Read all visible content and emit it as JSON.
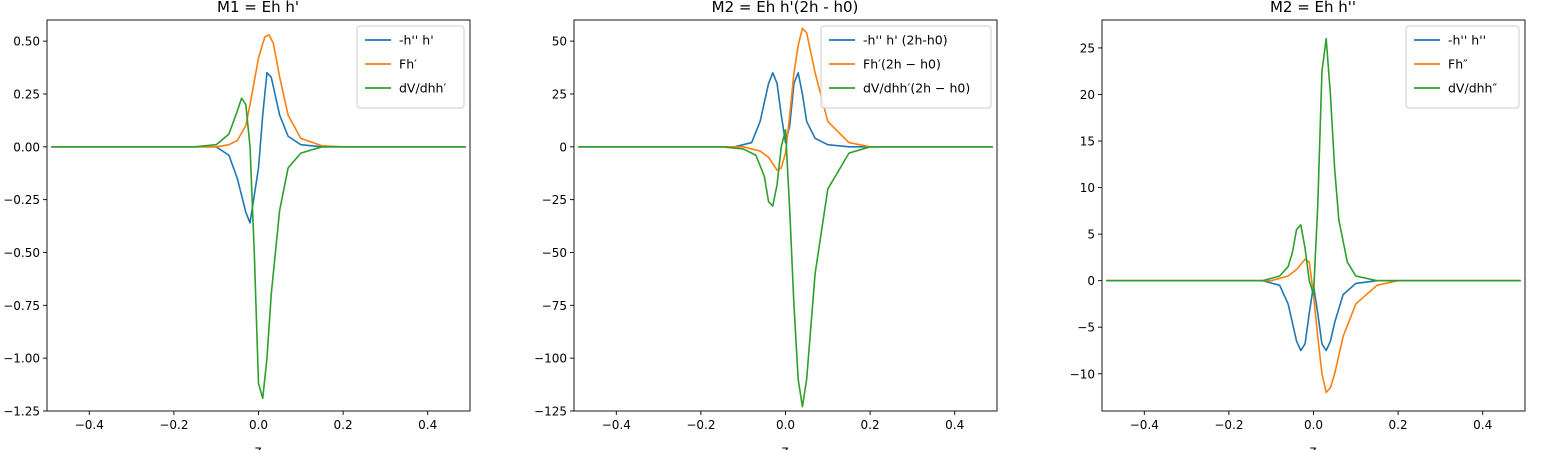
{
  "figure": {
    "background": "#ffffff"
  },
  "chart_data": [
    {
      "type": "line",
      "title": "M1 = Eh h'",
      "xlabel": "z",
      "ylabel": "",
      "xlim": [
        -0.5,
        0.5
      ],
      "ylim": [
        -1.25,
        0.6
      ],
      "xticks": [
        -0.4,
        -0.2,
        0.0,
        0.2,
        0.4
      ],
      "xtick_labels": [
        "−0.4",
        "−0.2",
        "0.0",
        "0.2",
        "0.4"
      ],
      "yticks": [
        0.5,
        0.25,
        0,
        -0.25,
        -0.5,
        -0.75,
        -1.0,
        -1.25
      ],
      "ytick_labels": [
        "0.50",
        "0.25",
        "0.00",
        "−0.25",
        "−0.50",
        "−0.75",
        "−1.00",
        "−1.25"
      ],
      "grid": false,
      "legend_position": "top-right",
      "series": [
        {
          "name": "-h'' h'",
          "color": "#1f77b4",
          "x": [
            -0.49,
            -0.1,
            -0.07,
            -0.05,
            -0.03,
            -0.02,
            0.0,
            0.01,
            0.02,
            0.03,
            0.05,
            0.07,
            0.1,
            0.15,
            0.49
          ],
          "y": [
            0,
            0,
            -0.04,
            -0.15,
            -0.31,
            -0.36,
            -0.1,
            0.15,
            0.35,
            0.33,
            0.15,
            0.05,
            0.01,
            0,
            0
          ]
        },
        {
          "name": "Fh′",
          "color": "#ff7f0e",
          "x": [
            -0.49,
            -0.1,
            -0.07,
            -0.05,
            -0.03,
            -0.02,
            0.0,
            0.015,
            0.025,
            0.035,
            0.05,
            0.07,
            0.1,
            0.15,
            0.2,
            0.49
          ],
          "y": [
            0,
            0,
            0.01,
            0.03,
            0.1,
            0.2,
            0.42,
            0.52,
            0.53,
            0.49,
            0.33,
            0.15,
            0.04,
            0.005,
            0,
            0
          ]
        },
        {
          "name": "dV/dhh′",
          "color": "#2ca02c",
          "x": [
            -0.49,
            -0.15,
            -0.1,
            -0.07,
            -0.05,
            -0.04,
            -0.03,
            -0.02,
            -0.01,
            0.0,
            0.01,
            0.02,
            0.03,
            0.05,
            0.07,
            0.1,
            0.15,
            0.2,
            0.49
          ],
          "y": [
            0,
            0,
            0.01,
            0.06,
            0.17,
            0.23,
            0.2,
            0.0,
            -0.5,
            -1.12,
            -1.19,
            -1.0,
            -0.7,
            -0.3,
            -0.1,
            -0.03,
            0,
            0,
            0
          ]
        }
      ]
    },
    {
      "type": "line",
      "title": "M2 = Eh h'(2h - h0)",
      "xlabel": "z",
      "ylabel": "",
      "xlim": [
        -0.5,
        0.5
      ],
      "ylim": [
        -125,
        60
      ],
      "xticks": [
        -0.4,
        -0.2,
        0.0,
        0.2,
        0.4
      ],
      "xtick_labels": [
        "−0.4",
        "−0.2",
        "0.0",
        "0.2",
        "0.4"
      ],
      "yticks": [
        50,
        25,
        0,
        -25,
        -50,
        -75,
        -100,
        -125
      ],
      "ytick_labels": [
        "50",
        "25",
        "0",
        "−25",
        "−50",
        "−75",
        "−100",
        "−125"
      ],
      "grid": false,
      "legend_position": "top-right",
      "series": [
        {
          "name": "-h'' h' (2h-h0)",
          "color": "#1f77b4",
          "x": [
            -0.49,
            -0.12,
            -0.08,
            -0.06,
            -0.04,
            -0.03,
            -0.02,
            -0.01,
            0.0,
            0.01,
            0.02,
            0.03,
            0.04,
            0.05,
            0.07,
            0.1,
            0.15,
            0.49
          ],
          "y": [
            0,
            0,
            2,
            12,
            30,
            35,
            30,
            15,
            2,
            10,
            30,
            35,
            25,
            12,
            4,
            1,
            0,
            0
          ]
        },
        {
          "name": "Fh′(2h − h0)",
          "color": "#ff7f0e",
          "x": [
            -0.49,
            -0.1,
            -0.06,
            -0.04,
            -0.02,
            -0.01,
            0.0,
            0.01,
            0.02,
            0.03,
            0.04,
            0.05,
            0.07,
            0.1,
            0.15,
            0.2,
            0.49
          ],
          "y": [
            0,
            0,
            -2,
            -5,
            -11,
            -10,
            -3,
            15,
            35,
            48,
            56,
            54,
            35,
            12,
            2,
            0,
            0
          ]
        },
        {
          "name": "dV/dhh′(2h − h0)",
          "color": "#2ca02c",
          "x": [
            -0.49,
            -0.15,
            -0.1,
            -0.07,
            -0.05,
            -0.04,
            -0.03,
            -0.02,
            -0.01,
            0.0,
            0.01,
            0.02,
            0.03,
            0.04,
            0.05,
            0.07,
            0.1,
            0.15,
            0.2,
            0.49
          ],
          "y": [
            0,
            0,
            -1,
            -4,
            -14,
            -26,
            -28,
            -18,
            0,
            8,
            -30,
            -75,
            -110,
            -123,
            -110,
            -60,
            -20,
            -3,
            0,
            0
          ]
        }
      ]
    },
    {
      "type": "line",
      "title": "M2 = Eh h''",
      "xlabel": "z",
      "ylabel": "",
      "xlim": [
        -0.5,
        0.5
      ],
      "ylim": [
        -14,
        28
      ],
      "xticks": [
        -0.4,
        -0.2,
        0.0,
        0.2,
        0.4
      ],
      "xtick_labels": [
        "−0.4",
        "−0.2",
        "0.0",
        "0.2",
        "0.4"
      ],
      "yticks": [
        25,
        20,
        15,
        10,
        5,
        0,
        -5,
        -10
      ],
      "ytick_labels": [
        "25",
        "20",
        "15",
        "10",
        "5",
        "0",
        "−5",
        "−10"
      ],
      "grid": false,
      "legend_position": "top-right",
      "series": [
        {
          "name": "-h'' h''",
          "color": "#1f77b4",
          "x": [
            -0.49,
            -0.12,
            -0.08,
            -0.06,
            -0.04,
            -0.03,
            -0.02,
            -0.01,
            0.0,
            0.01,
            0.02,
            0.03,
            0.04,
            0.05,
            0.07,
            0.1,
            0.15,
            0.49
          ],
          "y": [
            0,
            0,
            -0.5,
            -2.5,
            -6.5,
            -7.5,
            -6.8,
            -3.5,
            -0.5,
            -3.5,
            -6.8,
            -7.5,
            -6.5,
            -4.5,
            -1.5,
            -0.3,
            0,
            0
          ]
        },
        {
          "name": "Fh″",
          "color": "#ff7f0e",
          "x": [
            -0.49,
            -0.1,
            -0.06,
            -0.04,
            -0.02,
            -0.01,
            0.0,
            0.01,
            0.02,
            0.03,
            0.04,
            0.05,
            0.07,
            0.1,
            0.15,
            0.2,
            0.49
          ],
          "y": [
            0,
            0,
            0.5,
            1.2,
            2.3,
            2.0,
            -1.5,
            -6.0,
            -10.0,
            -12.0,
            -11.5,
            -10.0,
            -6.0,
            -2.5,
            -0.5,
            0,
            0
          ]
        },
        {
          "name": "dV/dhh″",
          "color": "#2ca02c",
          "x": [
            -0.49,
            -0.12,
            -0.08,
            -0.06,
            -0.05,
            -0.04,
            -0.03,
            -0.02,
            -0.01,
            0.0,
            0.01,
            0.02,
            0.03,
            0.04,
            0.05,
            0.06,
            0.08,
            0.1,
            0.15,
            0.49
          ],
          "y": [
            0,
            0,
            0.5,
            1.5,
            3.0,
            5.5,
            6.0,
            3.5,
            0,
            -1.5,
            8.0,
            22.5,
            26.0,
            20.0,
            12.0,
            6.5,
            2.0,
            0.5,
            0,
            0
          ]
        }
      ]
    }
  ]
}
